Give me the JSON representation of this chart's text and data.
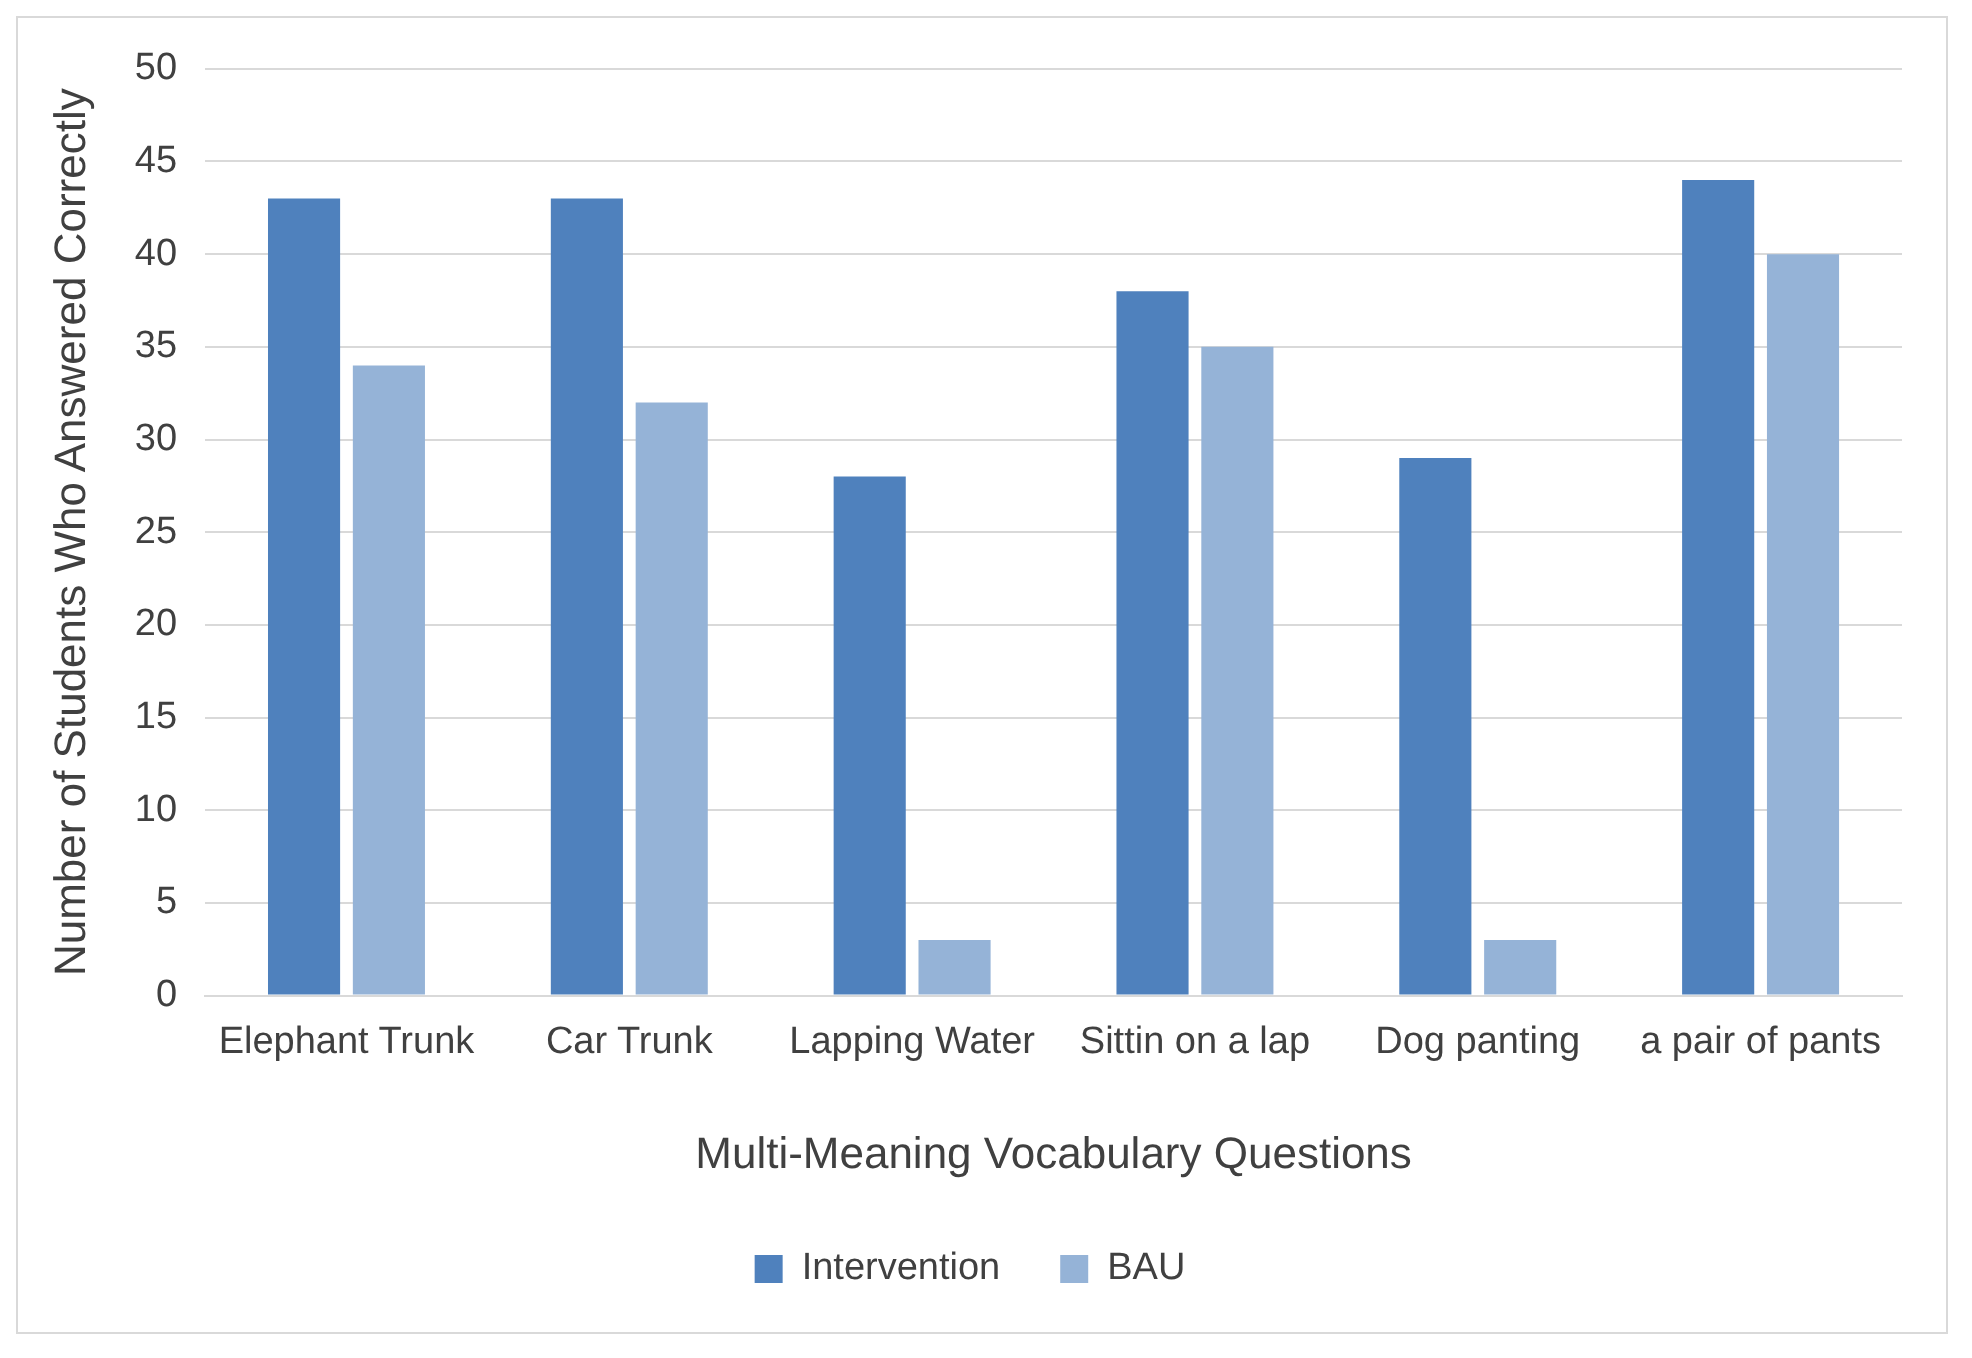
{
  "chart_data": {
    "type": "bar",
    "xlabel": "Multi-Meaning Vocabulary Questions",
    "ylabel": "Number of Students Who Answered Correctly",
    "categories": [
      "Elephant Trunk",
      "Car Trunk",
      "Lapping Water",
      "Sittin on a lap",
      "Dog panting",
      "a pair of pants"
    ],
    "series": [
      {
        "name": "Intervention",
        "color": "#4f81bd",
        "values": [
          43,
          43,
          28,
          38,
          29,
          44
        ]
      },
      {
        "name": "BAU",
        "color": "#95b3d7",
        "values": [
          34,
          32,
          3,
          35,
          3,
          40
        ]
      }
    ],
    "ylim": [
      0,
      50
    ],
    "yticks": [
      0,
      5,
      10,
      15,
      20,
      25,
      30,
      35,
      40,
      45,
      50
    ],
    "grid": "y",
    "legend": "bottom"
  }
}
